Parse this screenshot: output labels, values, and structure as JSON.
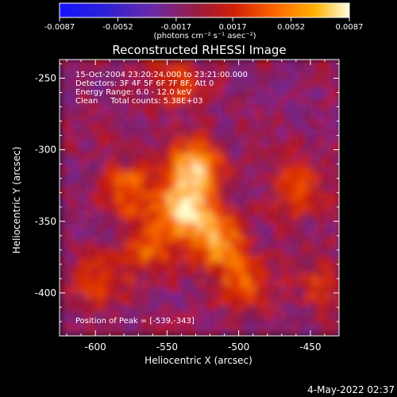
{
  "chart_data": {
    "type": "heatmap",
    "title": "Reconstructed RHESSI Image",
    "xlabel": "Heliocentric X (arcsec)",
    "ylabel": "Heliocentric Y (arcsec)",
    "xlim": [
      -625,
      -430
    ],
    "ylim": [
      -430,
      -237
    ],
    "x_ticks": [
      "-600",
      "-550",
      "-500",
      "-450"
    ],
    "x_tick_values": [
      -600,
      -550,
      -500,
      -450
    ],
    "y_ticks": [
      "-250",
      "-300",
      "-350",
      "-400"
    ],
    "y_tick_values": [
      -250,
      -300,
      -350,
      -400
    ],
    "colorbar": {
      "tick_labels": [
        "-0.0087",
        "-0.0052",
        "-0.0017",
        "0.0017",
        "0.0052",
        "0.0087"
      ],
      "tick_values": [
        -0.0087,
        -0.0052,
        -0.0017,
        0.0017,
        0.0052,
        0.0087
      ],
      "range": [
        -0.0087,
        0.0087
      ],
      "unit_label": "(photons cm⁻² s⁻¹ asec⁻²)"
    },
    "annotations": {
      "time_range": "15-Oct-2004 23:20:24.000 to 23:21:00.000",
      "detectors": "Detectors: 3F 4F 5F 6F 7F 8F, Att 0",
      "energy_range": "Energy Range: 6.0 - 12.0 keV",
      "method": "Clean     Total counts: 5.38E+03",
      "peak": "Position of Peak = [-539,-343]"
    },
    "peak_position": [
      -539,
      -343
    ],
    "sources": [
      {
        "x": -540,
        "y": -343,
        "intensity": 0.0087
      },
      {
        "x": -533,
        "y": -313,
        "intensity": 0.0075
      },
      {
        "x": -517,
        "y": -365,
        "intensity": 0.007
      },
      {
        "x": -580,
        "y": -330,
        "intensity": 0.005
      },
      {
        "x": -565,
        "y": -370,
        "intensity": 0.0045
      },
      {
        "x": -500,
        "y": -395,
        "intensity": 0.0045
      },
      {
        "x": -600,
        "y": -395,
        "intensity": 0.0038
      },
      {
        "x": -545,
        "y": -255,
        "intensity": 0.0035
      },
      {
        "x": -460,
        "y": -330,
        "intensity": 0.004
      },
      {
        "x": -445,
        "y": -395,
        "intensity": 0.003
      }
    ],
    "colors": {
      "low": "#1414ff",
      "mid_low": "#7a25a8",
      "mid": "#c81e0c",
      "mid_high": "#ff8c00",
      "high": "#ffffcc"
    }
  },
  "footer": {
    "timestamp": "4-May-2022 02:37"
  }
}
